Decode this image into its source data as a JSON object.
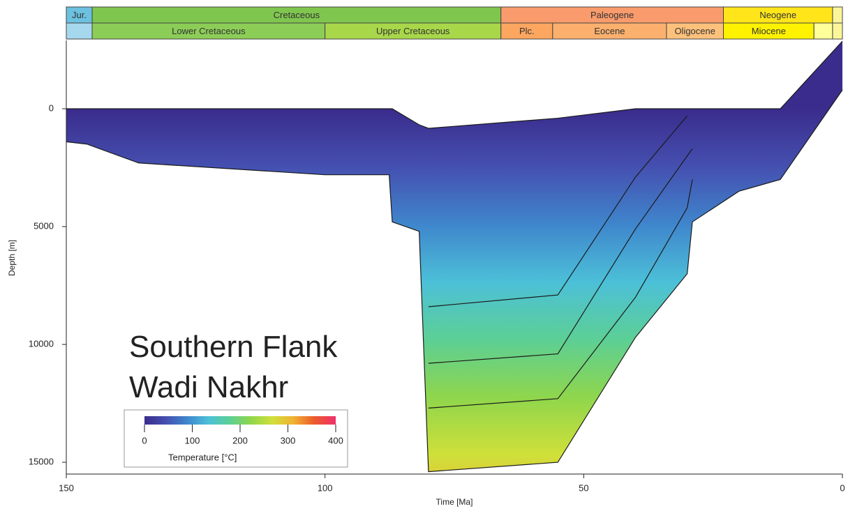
{
  "chart_data": {
    "type": "burial",
    "xlabel": "Time [Ma]",
    "ylabel": "Depth [m]",
    "xlim": [
      150,
      0
    ],
    "xticks": [
      150,
      100,
      50,
      0
    ],
    "ylim": [
      -2900,
      15500
    ],
    "yticks": [
      0,
      5000,
      10000,
      15000
    ],
    "annotation": [
      "Southern Flank",
      "Wadi Nakhr"
    ],
    "timescale": [
      [
        {
          "label": "Jur.",
          "start": 150,
          "end": 145,
          "color": "#6cc0e0"
        },
        {
          "label": "Cretaceous",
          "start": 145,
          "end": 66,
          "color": "#7fc64e"
        },
        {
          "label": "Paleogene",
          "start": 66,
          "end": 23,
          "color": "#f99b6c"
        },
        {
          "label": "Neogene",
          "start": 23,
          "end": 1.9,
          "color": "#ffe51a"
        },
        {
          "label": null,
          "start": 1.9,
          "end": 0,
          "color": "#fbf69a"
        }
      ],
      [
        {
          "label": null,
          "start": 150,
          "end": 145,
          "color": "#a5d8ec"
        },
        {
          "label": "Lower Cretaceous",
          "start": 145,
          "end": 100,
          "color": "#8ccd57"
        },
        {
          "label": "Upper Cretaceous",
          "start": 100,
          "end": 66,
          "color": "#a8d74a"
        },
        {
          "label": "Plc.",
          "start": 66,
          "end": 56,
          "color": "#fda65f"
        },
        {
          "label": "Eocene",
          "start": 56,
          "end": 34,
          "color": "#fcb06e"
        },
        {
          "label": "Oligocene",
          "start": 34,
          "end": 23,
          "color": "#fec17c"
        },
        {
          "label": "Miocene",
          "start": 23,
          "end": 5.5,
          "color": "#fff200"
        },
        {
          "label": null,
          "start": 5.5,
          "end": 1.9,
          "color": "#ffff99"
        },
        {
          "label": null,
          "start": 1.9,
          "end": 0,
          "color": "#fbf69a"
        }
      ]
    ],
    "x": [
      150,
      146,
      136,
      100,
      87.6,
      87,
      81.8,
      80,
      55,
      40,
      30,
      29,
      20,
      12,
      0
    ],
    "horizons": [
      {
        "values": [
          0,
          0,
          0,
          0,
          0,
          0,
          680,
          830,
          400,
          0,
          0,
          0,
          0,
          0,
          -2870
        ]
      },
      {
        "values": [
          null,
          null,
          null,
          null,
          null,
          null,
          null,
          8400,
          7900,
          2900,
          300,
          null,
          null,
          null,
          null
        ]
      },
      {
        "values": [
          null,
          null,
          null,
          null,
          null,
          null,
          null,
          10800,
          10400,
          5100,
          2000,
          1700,
          null,
          null,
          null
        ]
      },
      {
        "values": [
          null,
          null,
          null,
          null,
          null,
          null,
          null,
          12700,
          12300,
          8000,
          4200,
          3000,
          null,
          null,
          null
        ]
      },
      {
        "values": [
          1400,
          1500,
          2300,
          2800,
          2800,
          4800,
          5200,
          15400,
          15000,
          9700,
          7000,
          4800,
          3500,
          3000,
          -800
        ]
      }
    ],
    "colorbar": {
      "label": "Temperature [°C]",
      "lim": [
        0,
        400
      ],
      "ticks": [
        0,
        100,
        200,
        300,
        400
      ],
      "colormap": [
        "#3a2c8c",
        "#4550b0",
        "#3f86cc",
        "#4cc0d8",
        "#5ccf95",
        "#8fd64c",
        "#cfe03a",
        "#f1b232",
        "#ec5a2c",
        "#f0306a"
      ]
    }
  }
}
